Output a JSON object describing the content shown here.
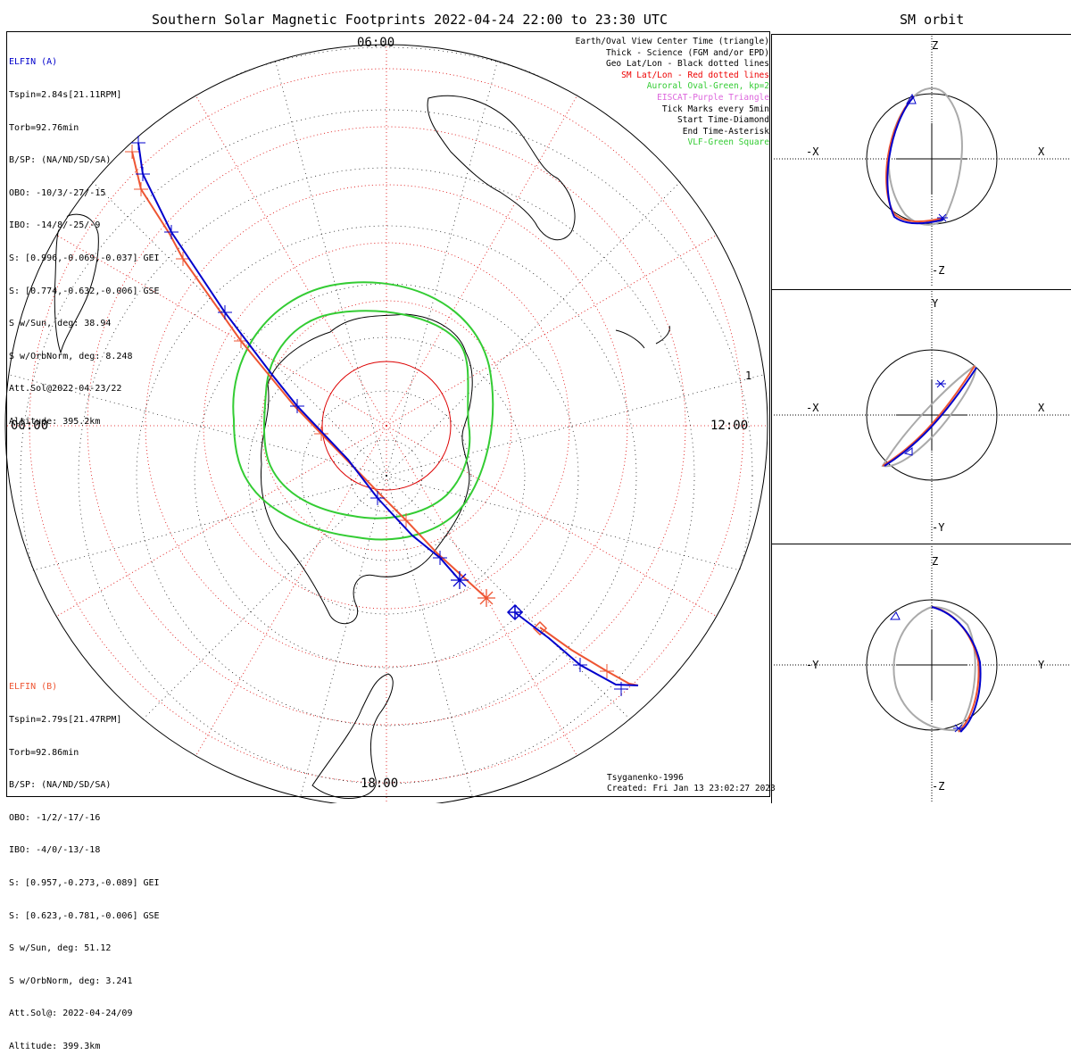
{
  "header": {
    "title": "Southern Solar Magnetic Footprints 2022-04-24 22:00 to 23:30 UTC",
    "orbit_title": "SM orbit"
  },
  "map": {
    "hour_labels": {
      "top": "06:00",
      "left": "00:00",
      "right": "12:00",
      "bottom": "18:00"
    },
    "side_mark": "1",
    "colors": {
      "elfin_a": "#0000cc",
      "elfin_b": "#ee5533",
      "oval": "#33cc33",
      "sm_grid": "#dd0000",
      "geo_grid": "#000000"
    }
  },
  "elfin_a": {
    "lines": [
      "ELFIN (A)",
      "Tspin=2.84s[21.11RPM]",
      "Torb=92.76min",
      "B/SP: (NA/ND/SD/SA)",
      "OBO: -10/3/-27/-15",
      "IBO: -14/8/-25/-9",
      "S: [0.996,-0.069,-0.037] GEI",
      "S: [0.774,-0.632,-0.006] GSE",
      "S w/Sun, deg: 38.94",
      "S w/OrbNorm, deg: 8.248",
      "Att.Sol@2022-04-23/22",
      "Altitude: 395.2km"
    ]
  },
  "elfin_b": {
    "lines": [
      "ELFIN (B)",
      "Tspin=2.79s[21.47RPM]",
      "Torb=92.86min",
      "B/SP: (NA/ND/SD/SA)",
      "OBO: -1/2/-17/-16",
      "IBO: -4/0/-13/-18",
      "S: [0.957,-0.273,-0.089] GEI",
      "S: [0.623,-0.781,-0.006] GSE",
      "S w/Sun, deg: 51.12",
      "S w/OrbNorm, deg: 3.241",
      "Att.Sol@: 2022-04-24/09",
      "Altitude: 399.3km"
    ]
  },
  "legend": [
    {
      "text": "Earth/Oval View Center Time (triangle)",
      "color": "#000000"
    },
    {
      "text": "Thick - Science (FGM and/or EPD)",
      "color": "#000000"
    },
    {
      "text": "Geo Lat/Lon - Black dotted lines",
      "color": "#000000"
    },
    {
      "text": "SM Lat/Lon - Red dotted lines",
      "color": "#ee0000"
    },
    {
      "text": "Auroral Oval-Green, kp=2",
      "color": "#33cc33"
    },
    {
      "text": "EISCAT-Purple Triangle",
      "color": "#dd66dd"
    },
    {
      "text": "Tick Marks every 5min",
      "color": "#000000"
    },
    {
      "text": "Start Time-Diamond",
      "color": "#000000"
    },
    {
      "text": "End Time-Asterisk",
      "color": "#000000"
    },
    {
      "text": "VLF-Green Square",
      "color": "#33cc33"
    }
  ],
  "credits": {
    "model": "Tsyganenko-1996",
    "created": "Created: Fri Jan 13 23:02:27 2023"
  },
  "orbit_panels": [
    {
      "name": "xz",
      "top": "Z",
      "bottom": "-Z",
      "left": "-X",
      "right": "X"
    },
    {
      "name": "xy",
      "top": "Y",
      "bottom": "-Y",
      "left": "-X",
      "right": "X"
    },
    {
      "name": "yz",
      "top": "Z",
      "bottom": "-Z",
      "left": "-Y",
      "right": "Y"
    }
  ]
}
